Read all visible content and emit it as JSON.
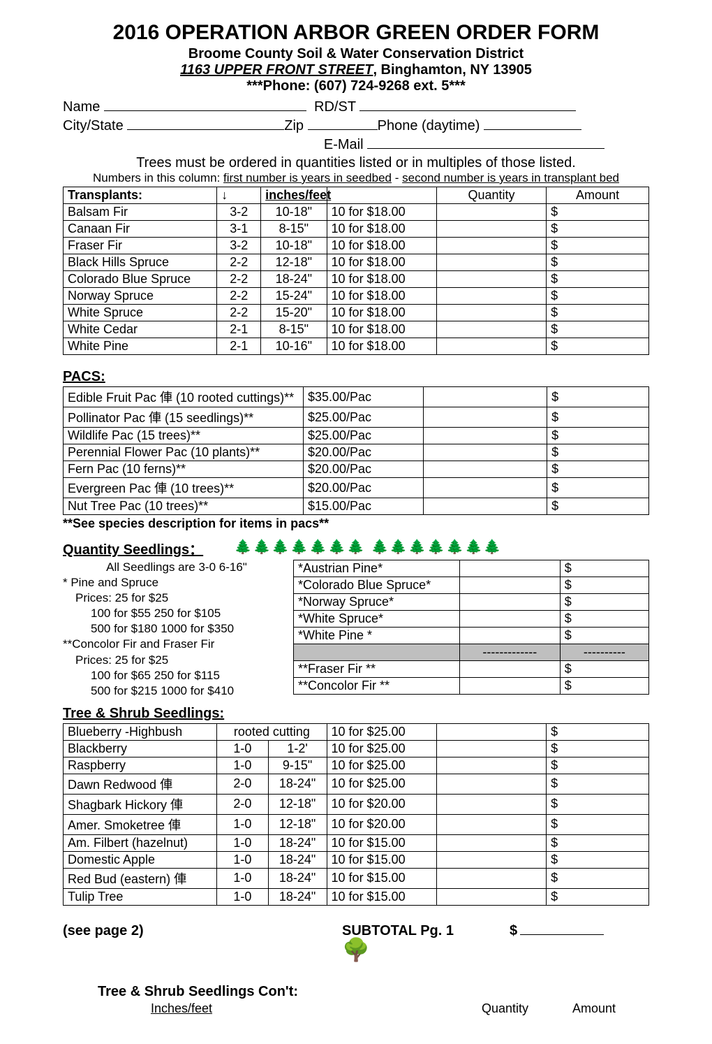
{
  "header": {
    "title": "2016 OPERATION ARBOR GREEN ORDER FORM",
    "org": "Broome County Soil & Water Conservation District",
    "street": "1163 UPPER FRONT STREET",
    "citystate": ", Binghamton, NY  13905",
    "phone": "***Phone:  (607) 724-9268 ext. 5***"
  },
  "fields": {
    "name": "Name",
    "rdst": "RD/ST",
    "city": "City/State",
    "zip": "Zip",
    "phone_day": "Phone (daytime)",
    "email": "E-Mail"
  },
  "notes": {
    "n1": "Trees must be ordered in quantities listed or in multiples of those listed.",
    "n2a": "Numbers in this column: ",
    "n2b": "first number is years in seedbed",
    "n2c": " - ",
    "n2d": "second number is years in transplant bed"
  },
  "transplants": {
    "title": "Transplants:",
    "arrow": "↓",
    "h_size": "inches/feet",
    "h_qty": "Quantity",
    "h_amt": "Amount",
    "rows": [
      {
        "name": "Balsam Fir",
        "code": "3-2",
        "size": "10-18\"",
        "price": "10  for  $18.00",
        "amt": "$"
      },
      {
        "name": "Canaan Fir",
        "code": "3-1",
        "size": "8-15\"",
        "price": "10  for  $18.00",
        "amt": "$"
      },
      {
        "name": "Fraser Fir",
        "code": "3-2",
        "size": "10-18\"",
        "price": "10  for  $18.00",
        "amt": "$"
      },
      {
        "name": "Black Hills Spruce",
        "code": "2-2",
        "size": "12-18\"",
        "price": "10  for  $18.00",
        "amt": "$"
      },
      {
        "name": "Colorado Blue Spruce",
        "code": "2-2",
        "size": "18-24\"",
        "price": "10  for  $18.00",
        "amt": "$"
      },
      {
        "name": "Norway Spruce",
        "code": "2-2",
        "size": "15-24\"",
        "price": "10  for  $18.00",
        "amt": "$"
      },
      {
        "name": "White Spruce",
        "code": "2-2",
        "size": "15-20\"",
        "price": "10  for  $18.00",
        "amt": "$"
      },
      {
        "name": "White Cedar",
        "code": "2-1",
        "size": "8-15\"",
        "price": "10  for  $18.00",
        "amt": "$"
      },
      {
        "name": "White Pine",
        "code": "2-1",
        "size": "10-16\"",
        "price": "10  for  $18.00",
        "amt": "$"
      }
    ]
  },
  "pacs": {
    "title": "PACS:",
    "rows": [
      {
        "name": "Edible Fruit Pac  俥    (10 rooted cuttings)**",
        "price": "$35.00/Pac",
        "amt": "$"
      },
      {
        "name": "Pollinator Pac      俥   (15 seedlings)**",
        "price": "$25.00/Pac",
        "amt": "$"
      },
      {
        "name": "Wildlife Pac             (15 trees)**",
        "price": "$25.00/Pac",
        "amt": "$"
      },
      {
        "name": "Perennial Flower Pac   (10 plants)**",
        "price": "$20.00/Pac",
        "amt": "$"
      },
      {
        "name": "Fern  Pac               (10 ferns)**",
        "price": "$20.00/Pac",
        "amt": "$"
      },
      {
        "name": "Evergreen  Pac  俥     (10 trees)**",
        "price": "$20.00/Pac",
        "amt": "$"
      },
      {
        "name": "Nut Tree Pac           (10 trees)**",
        "price": "$15.00/Pac",
        "amt": "$"
      }
    ],
    "footnote": "**See species description for items in pacs**"
  },
  "qs": {
    "title": "Quantity Seedlings：",
    "left": {
      "l1": "All Seedlings are 3-0   6-16\"",
      "l2": "* Pine and Spruce",
      "l3": "Prices:   25  for   $25",
      "l4": "100  for   $55       250  for  $105",
      "l5": "500 for  $180    1000 for   $350",
      "l6": "**Concolor Fir and Fraser Fir",
      "l7": "Prices:   25 for $25",
      "l8": "100 for $65       250 for $115",
      "l9": "500 for $215    1000 for $410"
    },
    "rows": [
      {
        "name": "*Austrian Pine*",
        "amt": "$"
      },
      {
        "name": "*Colorado Blue Spruce*",
        "amt": "$"
      },
      {
        "name": "*Norway Spruce*",
        "amt": "$"
      },
      {
        "name": "*White Spruce*",
        "amt": "$"
      },
      {
        "name": "*White Pine *",
        "amt": "$"
      }
    ],
    "sep": {
      "q": "-------------",
      "a": "----------"
    },
    "rows2": [
      {
        "name": "**Fraser Fir  **",
        "amt": "$"
      },
      {
        "name": "**Concolor Fir **",
        "amt": "$"
      }
    ]
  },
  "ts": {
    "title": "Tree & Shrub Seedlings:",
    "rows": [
      {
        "name": "Blueberry -Highbush",
        "code": "rooted cutting",
        "size": "",
        "price": "10  for  $25.00",
        "amt": "$"
      },
      {
        "name": "Blackberry",
        "code": "1-0",
        "size": "1-2'",
        "price": "10  for  $25.00",
        "amt": "$"
      },
      {
        "name": "Raspberry",
        "code": "1-0",
        "size": "9-15\"",
        "price": "10  for  $25.00",
        "amt": "$"
      },
      {
        "name": "Dawn Redwood        俥",
        "code": "2-0",
        "size": "18-24\"",
        "price": "10  for  $25.00",
        "amt": "$"
      },
      {
        "name": "Shagbark Hickory    俥",
        "code": "2-0",
        "size": "12-18\"",
        "price": "10  for  $20.00",
        "amt": "$"
      },
      {
        "name": "Amer. Smoketree     俥",
        "code": "1-0",
        "size": "12-18\"",
        "price": "10  for  $20.00",
        "amt": "$"
      },
      {
        "name": "Am. Filbert (hazelnut)",
        "code": "1-0",
        "size": "18-24\"",
        "price": "10  for  $15.00",
        "amt": "$"
      },
      {
        "name": "Domestic Apple",
        "code": "1-0",
        "size": "18-24\"",
        "price": "10  for  $15.00",
        "amt": "$"
      },
      {
        "name": "Red Bud (eastern)   俥",
        "code": "1-0",
        "size": "18-24\"",
        "price": "10  for  $15.00",
        "amt": "$"
      },
      {
        "name": "Tulip Tree",
        "code": "1-0",
        "size": "18-24\"",
        "price": "10  for  $15.00",
        "amt": "$"
      }
    ]
  },
  "subtotal": {
    "see": "(see page 2)",
    "label": "SUBTOTAL  Pg. 1",
    "dollar": "$"
  },
  "cont": {
    "title": "Tree & Shrub Seedlings Con't:",
    "h_size": "Inches/feet",
    "h_qty": "Quantity",
    "h_amt": "Amount"
  },
  "deco": {
    "trees_small": "🌲🌲🌲🌲🌲🌲🌲      🌲🌲🌲🌲🌲🌲🌲",
    "oak": "🌳"
  }
}
